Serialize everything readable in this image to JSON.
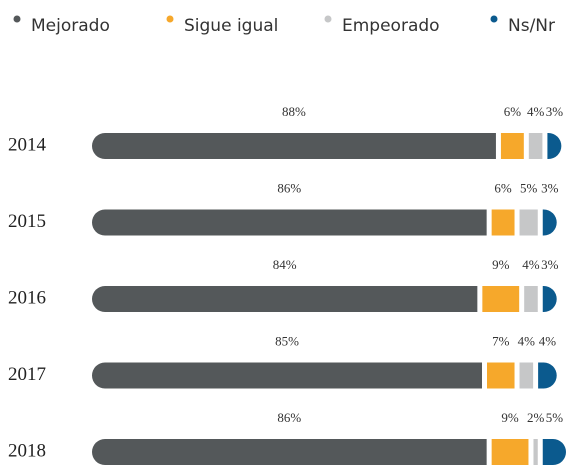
{
  "chart_data": {
    "type": "stacked-bar-horizontal",
    "categories": [
      "2014",
      "2015",
      "2016",
      "2017",
      "2018"
    ],
    "series": [
      {
        "name": "Mejorado",
        "color": "#54585a",
        "values": [
          88,
          86,
          84,
          85,
          86
        ],
        "value_labels": [
          "88%",
          "86%",
          "84%",
          "85%",
          "86%"
        ]
      },
      {
        "name": "Sigue igual",
        "color": "#f6a82b",
        "values": [
          6,
          6,
          9,
          7,
          9
        ],
        "value_labels": [
          "6%",
          "6%",
          "9%",
          "7%",
          "9%"
        ]
      },
      {
        "name": "Empeorado",
        "color": "#c6c7c8",
        "values": [
          4,
          5,
          4,
          4,
          2
        ],
        "value_labels": [
          "4%",
          "5%",
          "4%",
          "4%",
          "2%"
        ]
      },
      {
        "name": "Ns/Nr",
        "color": "#0b5a8e",
        "values": [
          3,
          3,
          3,
          4,
          5
        ],
        "value_labels": [
          "3%",
          "3%",
          "3%",
          "4%",
          "5%"
        ]
      }
    ],
    "legend": "top"
  }
}
